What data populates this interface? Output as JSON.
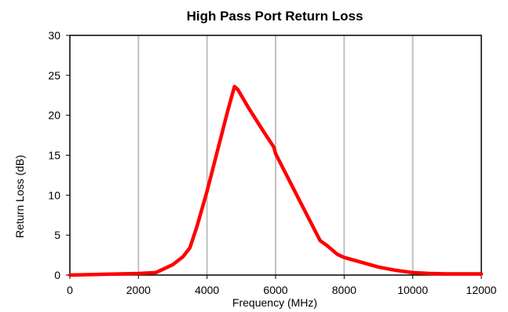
{
  "chart_data": {
    "type": "line",
    "title": "High Pass Port Return Loss",
    "xlabel": "Frequency (MHz)",
    "ylabel": "Return Loss (dB)",
    "xlim": [
      0,
      12000
    ],
    "ylim": [
      0,
      30
    ],
    "x_ticks": [
      0,
      2000,
      4000,
      6000,
      8000,
      10000,
      12000
    ],
    "y_ticks": [
      0,
      5,
      10,
      15,
      20,
      25,
      30
    ],
    "grid": "vertical",
    "legend": "none",
    "series": [
      {
        "color": "#ff0000",
        "x": [
          0,
          1000,
          2000,
          2500,
          3000,
          3300,
          3500,
          3700,
          4000,
          4300,
          4600,
          4800,
          4900,
          5200,
          5600,
          5950,
          6000,
          6500,
          7000,
          7300,
          7500,
          7800,
          8000,
          8500,
          9000,
          9500,
          10000,
          10500,
          11000,
          12000
        ],
        "y": [
          0.0,
          0.1,
          0.2,
          0.3,
          1.3,
          2.3,
          3.4,
          6.0,
          10.5,
          15.5,
          20.5,
          23.6,
          23.2,
          21.0,
          18.3,
          16.0,
          15.2,
          11.0,
          6.8,
          4.3,
          3.7,
          2.6,
          2.2,
          1.6,
          1.0,
          0.6,
          0.3,
          0.2,
          0.15,
          0.15
        ]
      }
    ]
  }
}
